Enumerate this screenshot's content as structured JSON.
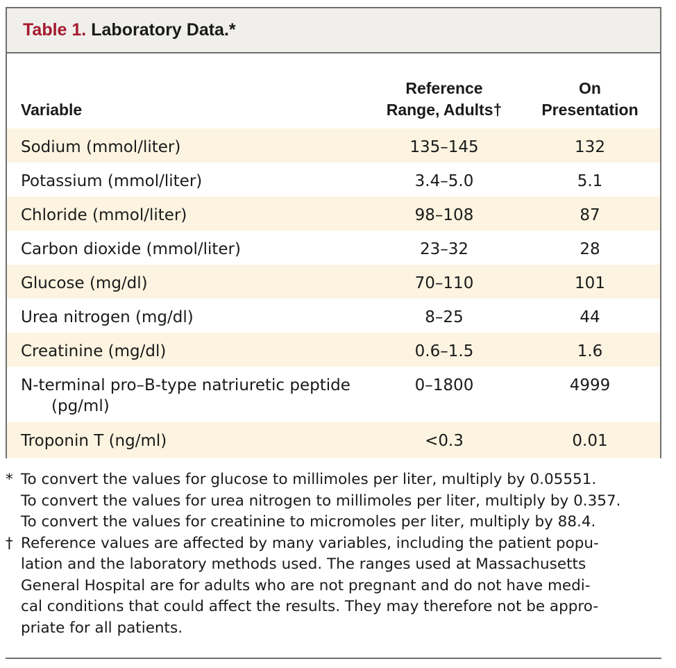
{
  "table": {
    "label": "Table 1.",
    "title": "Laboratory Data.*",
    "headers": {
      "variable": "Variable",
      "ref_line1": "Reference",
      "ref_line2": "Range, Adults†",
      "pres_line1": "On",
      "pres_line2": "Presentation"
    },
    "rows": [
      {
        "variable": "Sodium (mmol/liter)",
        "ref": "135–145",
        "pres": "132"
      },
      {
        "variable": "Potassium (mmol/liter)",
        "ref": "3.4–5.0",
        "pres": "5.1"
      },
      {
        "variable": "Chloride (mmol/liter)",
        "ref": "98–108",
        "pres": "87"
      },
      {
        "variable": "Carbon dioxide (mmol/liter)",
        "ref": "23–32",
        "pres": "28"
      },
      {
        "variable": "Glucose (mg/dl)",
        "ref": "70–110",
        "pres": "101"
      },
      {
        "variable": "Urea nitrogen (mg/dl)",
        "ref": "8–25",
        "pres": "44"
      },
      {
        "variable": "Creatinine (mg/dl)",
        "ref": "0.6–1.5",
        "pres": "1.6"
      },
      {
        "variable": "N-terminal pro–B-type natriuretic peptide",
        "variable_line2": "(pg/ml)",
        "ref": "0–1800",
        "pres": "4999"
      },
      {
        "variable": "Troponin T (ng/ml)",
        "ref": "<0.3",
        "pres": "0.01"
      }
    ]
  },
  "footnotes": [
    {
      "mark": "*",
      "lines": [
        "To convert the values for glucose to millimoles per liter, multiply by 0.05551.",
        "To convert the values for urea nitrogen to millimoles per liter, multiply by 0.357.",
        "To convert the values for creatinine to micromoles per liter, multiply by 88.4."
      ]
    },
    {
      "mark": "†",
      "lines": [
        "Reference values are affected by many variables, including the patient popu-",
        "lation and the laboratory methods used. The ranges used at Massachusetts",
        "General Hospital are for adults who are not pregnant and do not have medi-",
        "cal conditions that could affect the results. They may therefore not be appro-",
        "priate for all patients."
      ]
    }
  ]
}
